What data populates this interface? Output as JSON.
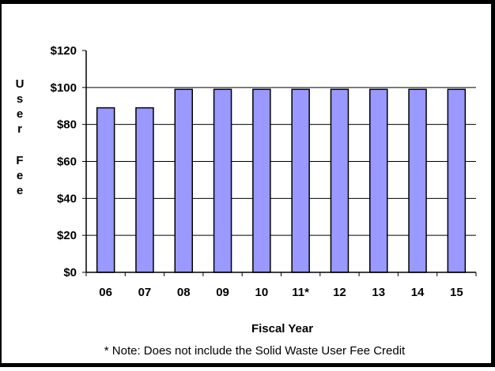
{
  "chart_data": {
    "type": "bar",
    "categories": [
      "06",
      "07",
      "08",
      "09",
      "10",
      "11*",
      "12",
      "13",
      "14",
      "15"
    ],
    "values": [
      89,
      89,
      99,
      99,
      99,
      99,
      99,
      99,
      99,
      99
    ],
    "ylim": [
      0,
      120
    ],
    "yticks": [
      0,
      20,
      40,
      60,
      80,
      100,
      120
    ],
    "ytick_labels": [
      "$0",
      "$20",
      "$40",
      "$60",
      "$80",
      "$100",
      "$120"
    ],
    "ylabel": "User Fee",
    "xlabel": "Fiscal Year",
    "note": "* Note: Does not include the Solid Waste User Fee Credit",
    "grid": "horizontal",
    "colors": {
      "bar_fill": "#9999ff",
      "bar_stroke": "#000000",
      "axis": "#000000",
      "grid": "#000000"
    }
  }
}
